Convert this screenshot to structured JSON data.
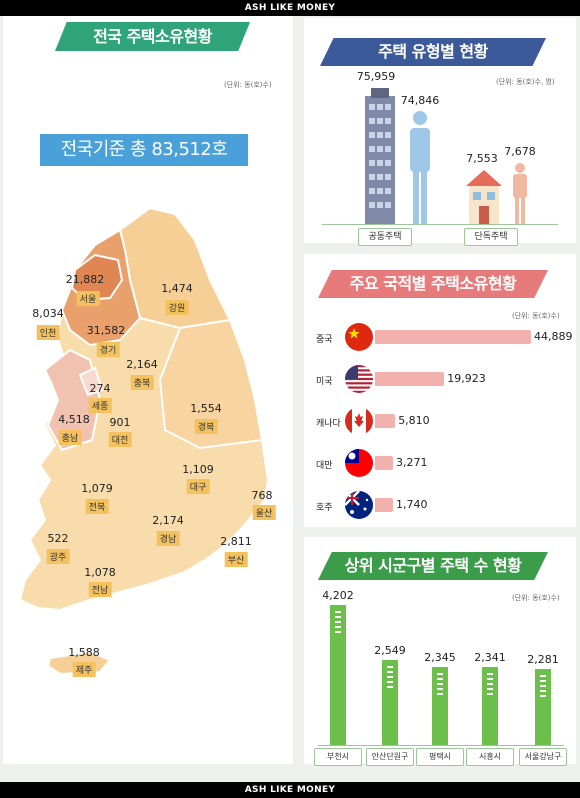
{
  "header": {
    "brand_top": "ASH LIKE MONEY",
    "brand_bottom": "ASH LIKE MONEY"
  },
  "left": {
    "title": "전국 주택소유현황",
    "unit": "(단위: 동(호)수)",
    "total": "전국기준 총 83,512호",
    "regions": [
      {
        "name": "서울",
        "value": "21,882"
      },
      {
        "name": "인천",
        "value": "8,034"
      },
      {
        "name": "경기",
        "value": "31,582"
      },
      {
        "name": "강원",
        "value": "1,474"
      },
      {
        "name": "충북",
        "value": "2,164"
      },
      {
        "name": "세종",
        "value": "274"
      },
      {
        "name": "충남",
        "value": "4,518"
      },
      {
        "name": "대전",
        "value": "901"
      },
      {
        "name": "경북",
        "value": "1,554"
      },
      {
        "name": "대구",
        "value": "1,109"
      },
      {
        "name": "울산",
        "value": "768"
      },
      {
        "name": "전북",
        "value": "1,079"
      },
      {
        "name": "경남",
        "value": "2,174"
      },
      {
        "name": "부산",
        "value": "2,811"
      },
      {
        "name": "광주",
        "value": "522"
      },
      {
        "name": "전남",
        "value": "1,078"
      },
      {
        "name": "제주",
        "value": "1,588"
      }
    ]
  },
  "chart_data": [
    {
      "type": "bar",
      "title": "주택 유형별 현황",
      "unit": "(단위: 동(호)수, 명)",
      "categories": [
        "공동주택",
        "단독주택"
      ],
      "series": [
        {
          "values": [
            75959,
            7553
          ]
        },
        {
          "values": [
            74846,
            7678
          ]
        }
      ],
      "labels": [
        [
          "75,959",
          "74,846"
        ],
        [
          "7,553",
          "7,678"
        ]
      ]
    },
    {
      "type": "bar",
      "title": "주요 국적별 주택소유현황",
      "unit": "(단위: 동(호)수)",
      "orientation": "horizontal",
      "categories": [
        "중국",
        "미국",
        "캐나다",
        "대만",
        "호주"
      ],
      "values": [
        44889,
        19923,
        5810,
        3271,
        1740
      ],
      "labels": [
        "44,889",
        "19,923",
        "5,810",
        "3,271",
        "1,740"
      ],
      "flags": [
        "china-flag",
        "usa-flag",
        "canada-flag",
        "taiwan-flag",
        "australia-flag"
      ]
    },
    {
      "type": "bar",
      "title": "상위 시군구별 주택 수 현황",
      "unit": "(단위: 동(호)수)",
      "categories": [
        "부천시",
        "안산단원구",
        "평택시",
        "시흥시",
        "서울강남구"
      ],
      "values": [
        4202,
        2549,
        2345,
        2341,
        2281
      ],
      "labels": [
        "4,202",
        "2,549",
        "2,345",
        "2,341",
        "2,281"
      ]
    }
  ],
  "colors": {
    "green": "#2fa37a",
    "navy": "#3c5a9a",
    "pink": "#e77a7a",
    "barGreen": "#6dbf4b",
    "barPink": "#f2b1ad",
    "total": "#4aa0d8"
  }
}
